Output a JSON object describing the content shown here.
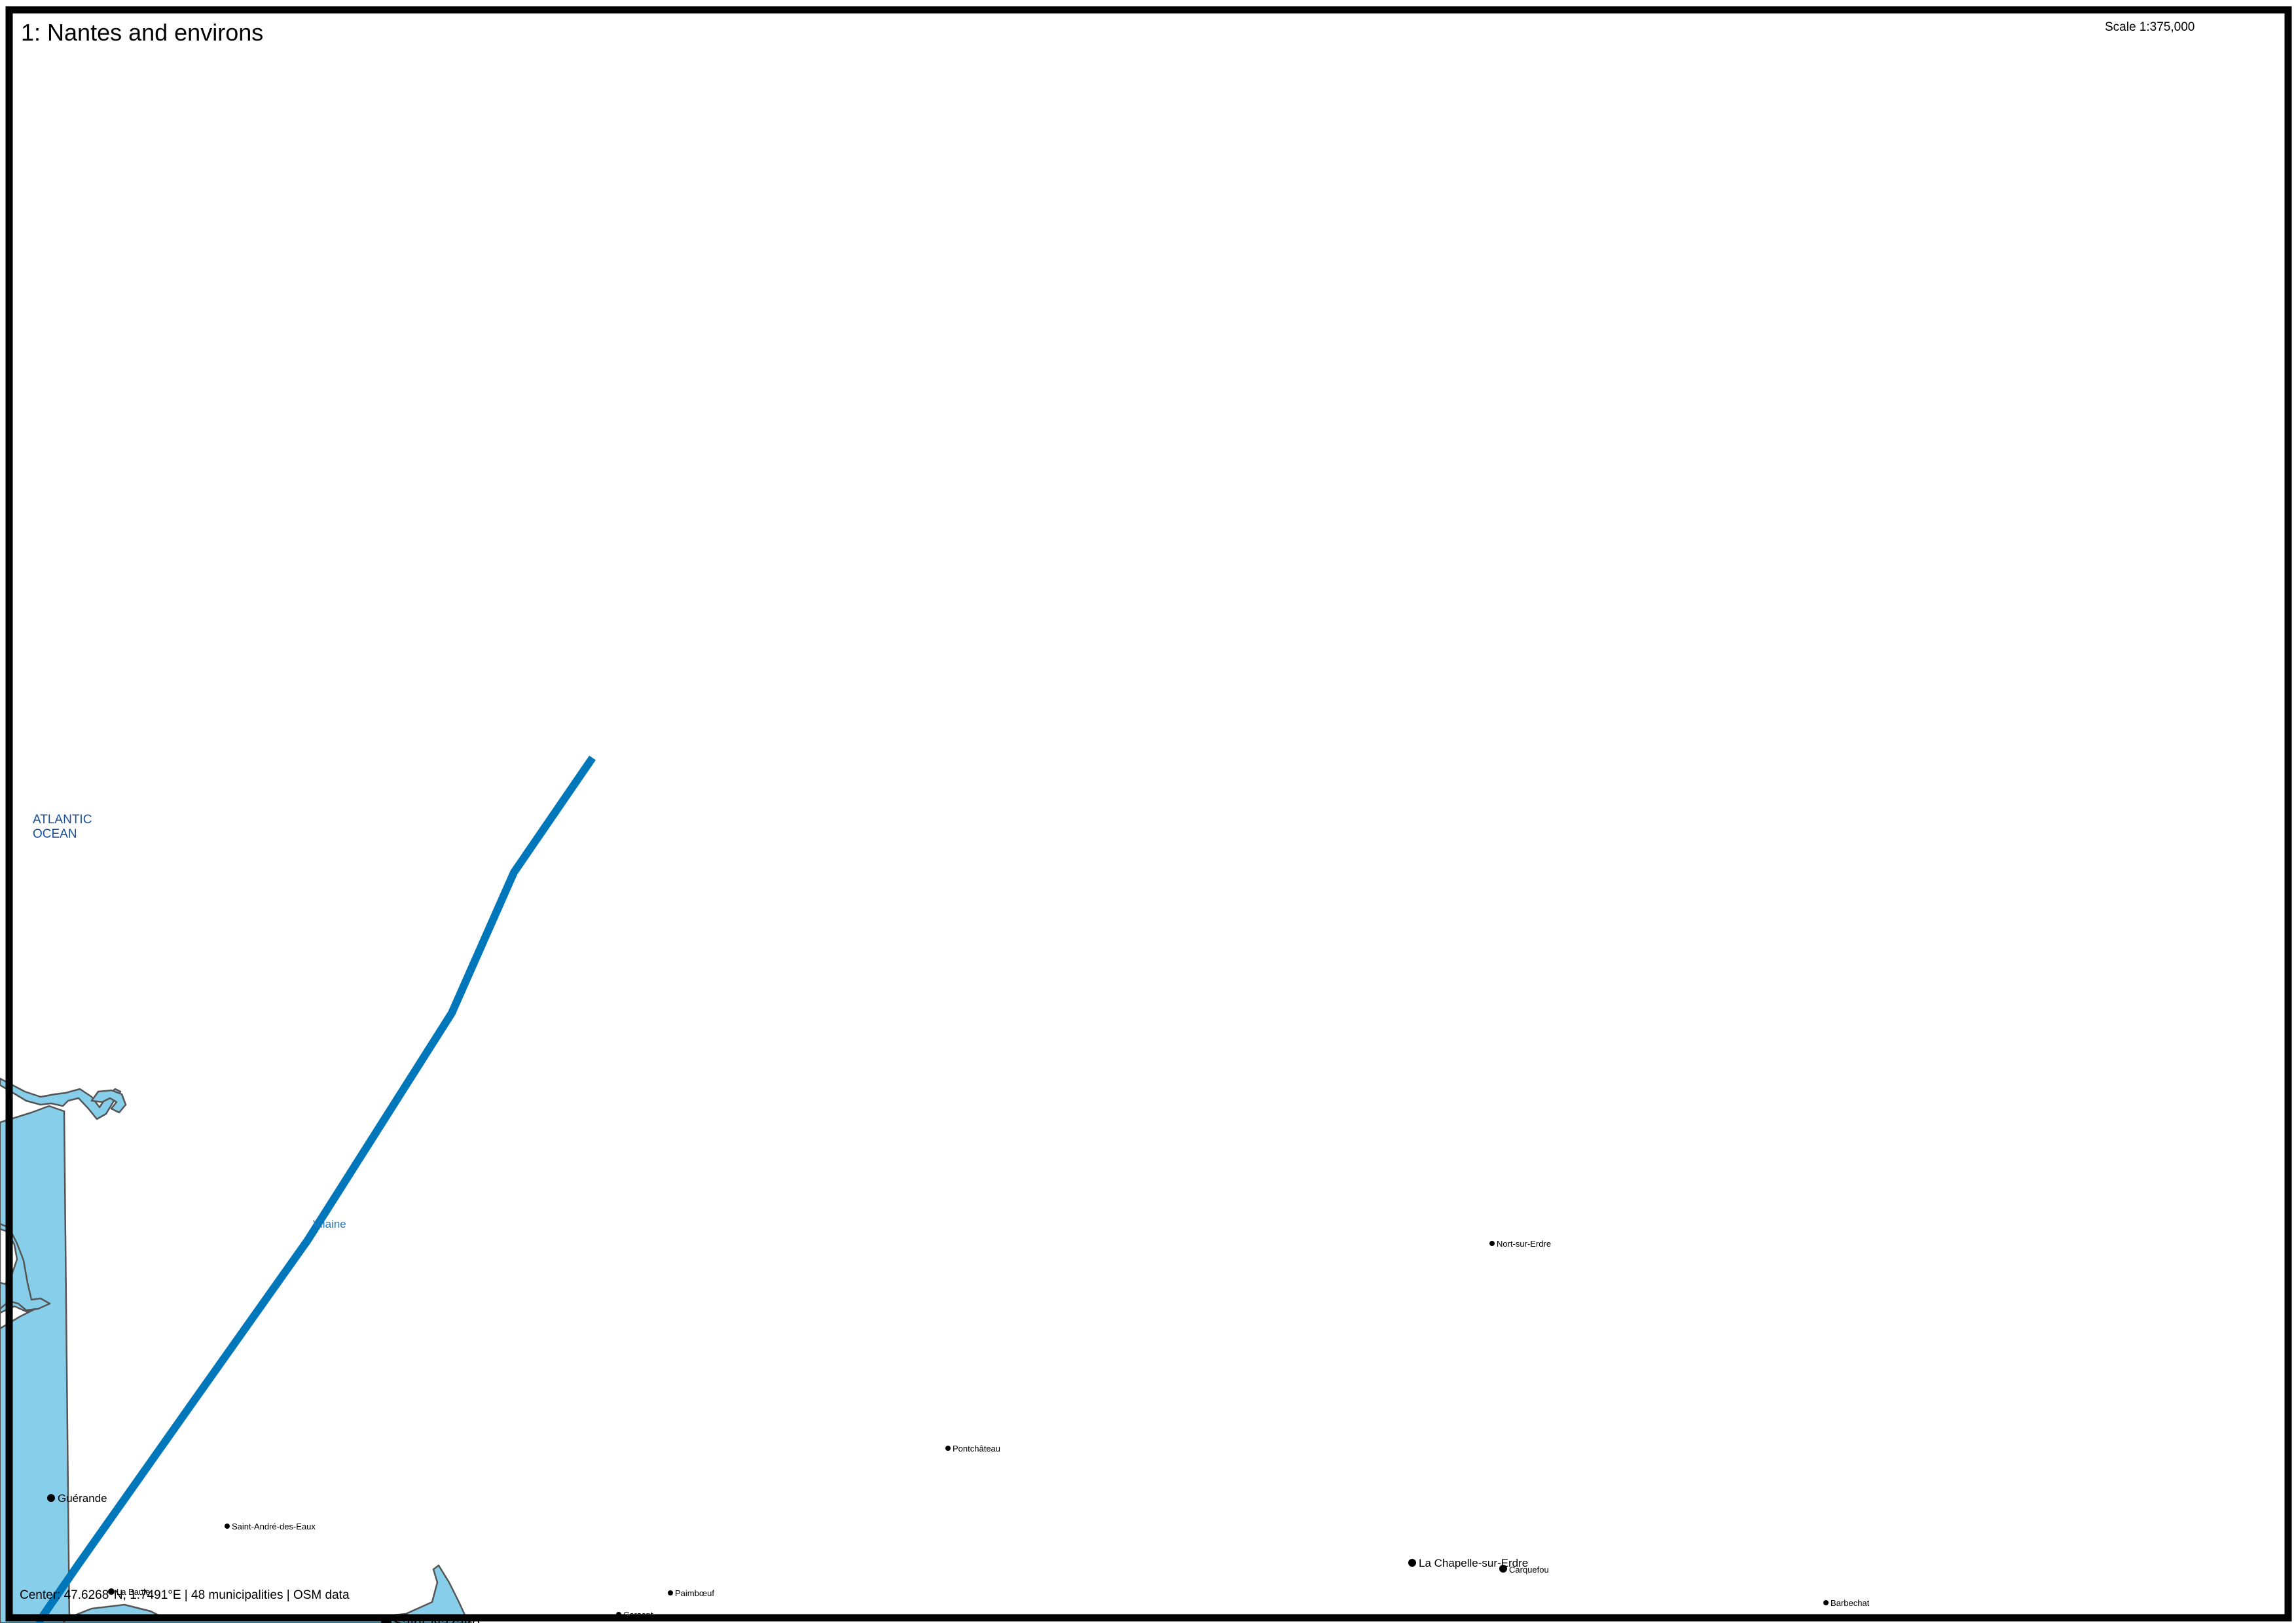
{
  "map": {
    "title": "1: Nantes and environs",
    "scale": "Scale 1:375,000",
    "status": "Center: 47.6268°N, 1.7491°E | 48 municipalities | OSM data",
    "colors": {
      "frame": "#000000",
      "water": "#87ceeb",
      "coastline": "#555555",
      "river": "#0077bb",
      "ocean_label": "#1a4fa0",
      "river_label": "#1f7bc4"
    },
    "labels": {
      "ocean_line1": "ATLANTIC",
      "ocean_line2": "OCEAN",
      "river": "Vilaine"
    },
    "places": [
      {
        "name": "Guérande"
      },
      {
        "name": "Saint-André-des-Eaux"
      },
      {
        "name": "La Baule"
      },
      {
        "name": "Paimbœuf"
      },
      {
        "name": "Corsept"
      },
      {
        "name": "Saint-Nazaire"
      },
      {
        "name": "Pontchâteau"
      },
      {
        "name": "Nort-sur-Erdre"
      },
      {
        "name": "La Chapelle-sur-Erdre"
      },
      {
        "name": "Carquefou"
      },
      {
        "name": "Barbechat"
      }
    ]
  }
}
